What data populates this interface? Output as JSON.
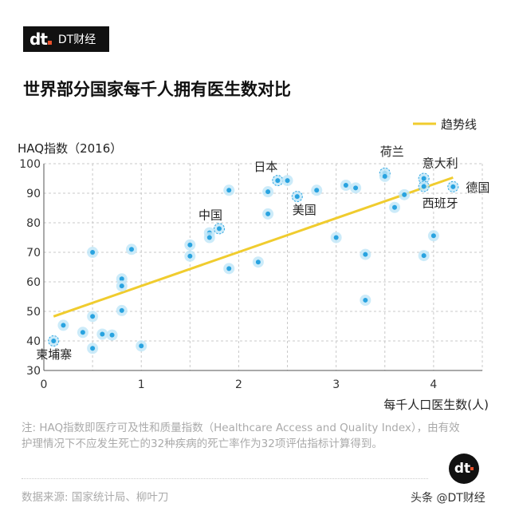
{
  "header": {
    "logo_mark": "dt",
    "logo_name": "DT财经",
    "title": "世界部分国家每千人拥有医生数对比"
  },
  "chart_data": {
    "type": "scatter",
    "ylabel": "HAQ指数（2016）",
    "xlabel": "每千人口医生数(人)",
    "xlim": [
      0,
      4.5
    ],
    "ylim": [
      30,
      100
    ],
    "xticks": [
      "0",
      "1",
      "2",
      "3",
      "4"
    ],
    "yticks": [
      "30",
      "40",
      "50",
      "60",
      "70",
      "80",
      "90",
      "100"
    ],
    "grid": true,
    "legend": {
      "position": "top-right",
      "label": "趋势线"
    },
    "colors": {
      "point": "#29a3e0",
      "halo": "#bfe6f8",
      "trend": "#f0cc2e"
    },
    "trend": {
      "x": [
        0.1,
        4.2
      ],
      "y": [
        48.3,
        95.3
      ]
    },
    "points": [
      {
        "x": 0.1,
        "y": 40,
        "label": "柬埔寨"
      },
      {
        "x": 0.2,
        "y": 45.3
      },
      {
        "x": 0.4,
        "y": 42.9
      },
      {
        "x": 0.5,
        "y": 70
      },
      {
        "x": 0.5,
        "y": 48.3
      },
      {
        "x": 0.5,
        "y": 37.5
      },
      {
        "x": 0.6,
        "y": 42.3
      },
      {
        "x": 0.7,
        "y": 42
      },
      {
        "x": 0.9,
        "y": 71
      },
      {
        "x": 0.8,
        "y": 61
      },
      {
        "x": 0.8,
        "y": 58.6
      },
      {
        "x": 0.8,
        "y": 50.3
      },
      {
        "x": 1.0,
        "y": 38.3
      },
      {
        "x": 1.5,
        "y": 72.5
      },
      {
        "x": 1.5,
        "y": 68.7
      },
      {
        "x": 1.7,
        "y": 76.6
      },
      {
        "x": 1.7,
        "y": 75
      },
      {
        "x": 1.8,
        "y": 78,
        "label": "中国"
      },
      {
        "x": 1.9,
        "y": 91
      },
      {
        "x": 1.9,
        "y": 64.5
      },
      {
        "x": 2.2,
        "y": 66.7
      },
      {
        "x": 2.3,
        "y": 90.5
      },
      {
        "x": 2.3,
        "y": 83
      },
      {
        "x": 2.4,
        "y": 94.3,
        "label": "日本"
      },
      {
        "x": 2.5,
        "y": 94.3
      },
      {
        "x": 2.6,
        "y": 88.9,
        "label": "美国"
      },
      {
        "x": 2.8,
        "y": 91
      },
      {
        "x": 3.0,
        "y": 75
      },
      {
        "x": 3.1,
        "y": 92.7
      },
      {
        "x": 3.2,
        "y": 91.8
      },
      {
        "x": 3.3,
        "y": 69.3
      },
      {
        "x": 3.3,
        "y": 53.8
      },
      {
        "x": 3.5,
        "y": 96.8,
        "label": "荷兰"
      },
      {
        "x": 3.5,
        "y": 95.7
      },
      {
        "x": 3.6,
        "y": 85.2
      },
      {
        "x": 3.7,
        "y": 89.5
      },
      {
        "x": 3.9,
        "y": 95,
        "label": "意大利"
      },
      {
        "x": 3.9,
        "y": 92.3,
        "label": "西班牙"
      },
      {
        "x": 3.9,
        "y": 68.9
      },
      {
        "x": 4.0,
        "y": 75.6
      },
      {
        "x": 4.2,
        "y": 92.2,
        "label": "德国"
      }
    ]
  },
  "footer": {
    "note": "注: HAQ指数即医疗可及性和质量指数（Healthcare Access and Quality Index），由有效护理情况下不应发生死亡的32种疾病的死亡率作为32项评估指标计算得到。",
    "source": "数据来源: 国家统计局、柳叶刀",
    "badge": "dt",
    "credit": "头条 @DT财经"
  }
}
